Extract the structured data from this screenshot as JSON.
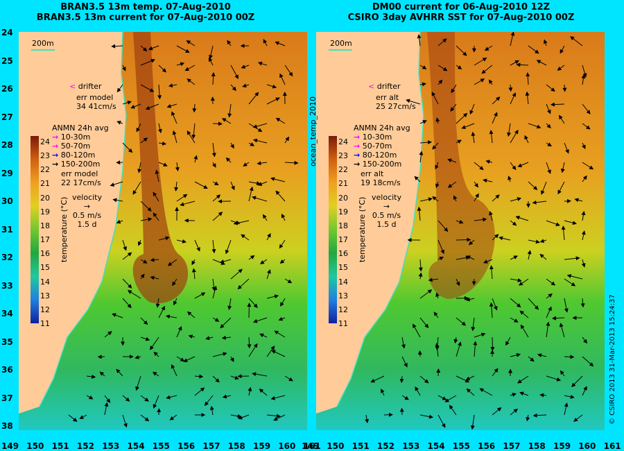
{
  "left": {
    "title_line1": "BRAN3.5 13m temp. 07-Aug-2010",
    "title_line2": "BRAN3.5 13m current for 07-Aug-2010 00Z",
    "isobath": "200m",
    "drifter": "drifter",
    "err_label": "err model",
    "err_value": "34 41cm/s",
    "anmn_title": "ANMN 24h avg",
    "err2_label": "err model",
    "err2_value": "22 17cm/s"
  },
  "right": {
    "title_line1": "DM00 current for 06-Aug-2010 12Z",
    "title_line2": "CSIRO 3day AVHRR SST for 07-Aug-2010 00Z",
    "isobath": "200m",
    "drifter": "drifter",
    "err_label": "err alt",
    "err_value": "25 27cm/s",
    "anmn_title": "ANMN 24h avg",
    "err2_label": "err alt",
    "err2_value": "19 18cm/s"
  },
  "anmn_depths": [
    {
      "label": "10-30m",
      "color": "#ff00ff"
    },
    {
      "label": "50-70m",
      "color": "#ff00ff"
    },
    {
      "label": "80-120m",
      "color": "#0000ff"
    },
    {
      "label": "150-200m",
      "color": "#000000"
    }
  ],
  "velocity": {
    "title": "velocity",
    "speed": "0.5 m/s",
    "time": "1.5 d"
  },
  "colorbar": {
    "label": "temperature (°C)",
    "ticks": [
      24,
      23,
      22,
      21,
      20,
      19,
      18,
      17,
      16,
      15,
      14,
      13,
      12,
      11
    ]
  },
  "lat_ticks": [
    24,
    25,
    26,
    27,
    28,
    29,
    30,
    31,
    32,
    33,
    34,
    35,
    36,
    37,
    38
  ],
  "lon_ticks": [
    149,
    150,
    151,
    152,
    153,
    154,
    155,
    156,
    157,
    158,
    159,
    160,
    161
  ],
  "side_label": "ocean_temp_2010",
  "credit": "© CSIRO 2013   31-Mar-2013 15:24:37"
}
